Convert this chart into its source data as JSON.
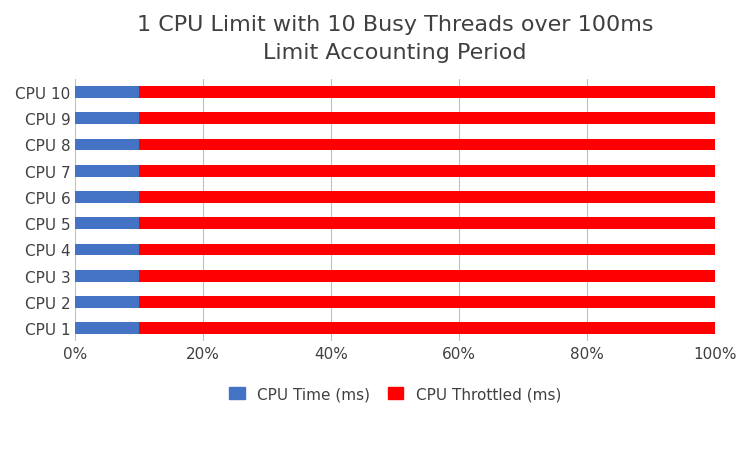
{
  "title": "1 CPU Limit with 10 Busy Threads over 100ms\nLimit Accounting Period",
  "categories": [
    "CPU 1",
    "CPU 2",
    "CPU 3",
    "CPU 4",
    "CPU 5",
    "CPU 6",
    "CPU 7",
    "CPU 8",
    "CPU 9",
    "CPU 10"
  ],
  "cpu_time_pct": [
    10,
    10,
    10,
    10,
    10,
    10,
    10,
    10,
    10,
    10
  ],
  "cpu_throttled_pct": [
    90,
    90,
    90,
    90,
    90,
    90,
    90,
    90,
    90,
    90
  ],
  "cpu_time_color": "#4472C4",
  "cpu_throttled_color": "#FF0000",
  "background_color": "#FFFFFF",
  "grid_color": "#C0C0C0",
  "legend_labels": [
    "CPU Time (ms)",
    "CPU Throttled (ms)"
  ],
  "xlabel_ticks": [
    "0%",
    "20%",
    "40%",
    "60%",
    "80%",
    "100%"
  ],
  "xlabel_vals": [
    0,
    20,
    40,
    60,
    80,
    100
  ],
  "title_fontsize": 16,
  "tick_fontsize": 11,
  "legend_fontsize": 11,
  "bar_height": 0.45,
  "title_color": "#404040",
  "tick_color": "#404040"
}
